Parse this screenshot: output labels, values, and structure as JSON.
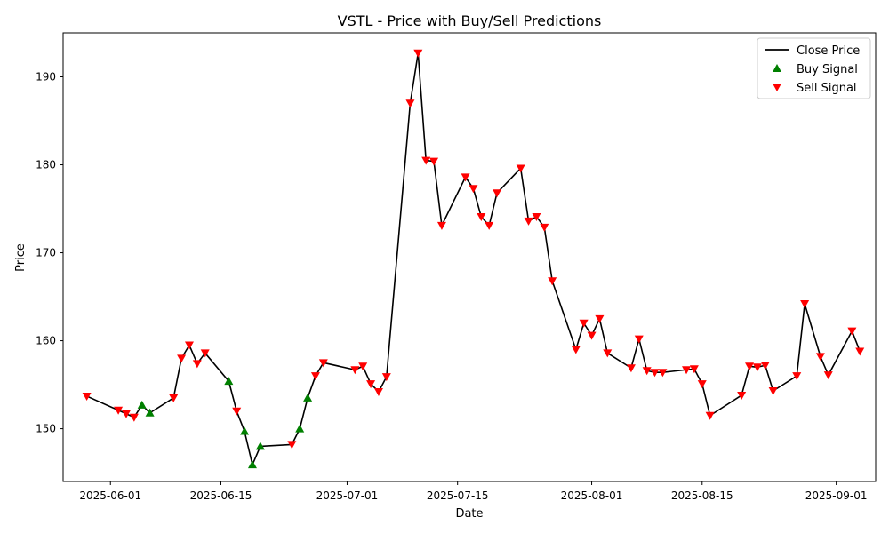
{
  "chart_data": {
    "type": "line",
    "title": "VSTL - Price with Buy/Sell Predictions",
    "xlabel": "Date",
    "ylabel": "Price",
    "xlim": [
      "2025-05-26",
      "2025-09-06"
    ],
    "ylim": [
      144,
      195
    ],
    "x_ticks": [
      "2025-06-01",
      "2025-06-15",
      "2025-07-01",
      "2025-07-15",
      "2025-08-01",
      "2025-08-15",
      "2025-09-01"
    ],
    "y_ticks": [
      150,
      160,
      170,
      180,
      190
    ],
    "legend": {
      "position": "top-right",
      "entries": [
        {
          "label": "Close Price",
          "kind": "line",
          "color": "#000000"
        },
        {
          "label": "Buy Signal",
          "kind": "triangle-up",
          "color": "#008000"
        },
        {
          "label": "Sell Signal",
          "kind": "triangle-down",
          "color": "#ff0000"
        }
      ]
    },
    "series": [
      {
        "name": "Close Price",
        "color": "#000000",
        "points": [
          [
            "2025-05-29",
            153.7
          ],
          [
            "2025-06-02",
            152.1
          ],
          [
            "2025-06-03",
            151.7
          ],
          [
            "2025-06-04",
            151.3
          ],
          [
            "2025-06-05",
            152.7
          ],
          [
            "2025-06-06",
            151.8
          ],
          [
            "2025-06-09",
            153.5
          ],
          [
            "2025-06-10",
            158.0
          ],
          [
            "2025-06-11",
            159.5
          ],
          [
            "2025-06-12",
            157.4
          ],
          [
            "2025-06-13",
            158.6
          ],
          [
            "2025-06-16",
            155.4
          ],
          [
            "2025-06-17",
            152.0
          ],
          [
            "2025-06-18",
            149.7
          ],
          [
            "2025-06-19",
            145.9
          ],
          [
            "2025-06-20",
            148.0
          ],
          [
            "2025-06-24",
            148.2
          ],
          [
            "2025-06-25",
            150.0
          ],
          [
            "2025-06-26",
            153.5
          ],
          [
            "2025-06-27",
            156.0
          ],
          [
            "2025-06-28",
            157.5
          ],
          [
            "2025-07-02",
            156.7
          ],
          [
            "2025-07-03",
            157.1
          ],
          [
            "2025-07-04",
            155.1
          ],
          [
            "2025-07-05",
            154.2
          ],
          [
            "2025-07-06",
            155.9
          ],
          [
            "2025-07-09",
            187.0
          ],
          [
            "2025-07-10",
            192.7
          ],
          [
            "2025-07-11",
            180.5
          ],
          [
            "2025-07-12",
            180.4
          ],
          [
            "2025-07-13",
            173.1
          ],
          [
            "2025-07-16",
            178.6
          ],
          [
            "2025-07-17",
            177.3
          ],
          [
            "2025-07-18",
            174.1
          ],
          [
            "2025-07-19",
            173.1
          ],
          [
            "2025-07-20",
            176.8
          ],
          [
            "2025-07-23",
            179.6
          ],
          [
            "2025-07-24",
            173.6
          ],
          [
            "2025-07-25",
            174.1
          ],
          [
            "2025-07-26",
            172.9
          ],
          [
            "2025-07-27",
            166.8
          ],
          [
            "2025-07-30",
            159.0
          ],
          [
            "2025-07-31",
            162.0
          ],
          [
            "2025-08-01",
            160.6
          ],
          [
            "2025-08-02",
            162.5
          ],
          [
            "2025-08-03",
            158.6
          ],
          [
            "2025-08-06",
            156.9
          ],
          [
            "2025-08-07",
            160.2
          ],
          [
            "2025-08-08",
            156.6
          ],
          [
            "2025-08-09",
            156.4
          ],
          [
            "2025-08-10",
            156.4
          ],
          [
            "2025-08-13",
            156.7
          ],
          [
            "2025-08-14",
            156.8
          ],
          [
            "2025-08-15",
            155.1
          ],
          [
            "2025-08-16",
            151.5
          ],
          [
            "2025-08-20",
            153.8
          ],
          [
            "2025-08-21",
            157.1
          ],
          [
            "2025-08-22",
            157.0
          ],
          [
            "2025-08-23",
            157.2
          ],
          [
            "2025-08-24",
            154.3
          ],
          [
            "2025-08-27",
            156.0
          ],
          [
            "2025-08-28",
            164.2
          ],
          [
            "2025-08-30",
            158.2
          ],
          [
            "2025-08-31",
            156.1
          ],
          [
            "2025-09-03",
            161.1
          ],
          [
            "2025-09-04",
            158.8
          ]
        ]
      }
    ],
    "buy_signals": [
      [
        "2025-06-05",
        152.7
      ],
      [
        "2025-06-06",
        151.8
      ],
      [
        "2025-06-16",
        155.4
      ],
      [
        "2025-06-18",
        149.7
      ],
      [
        "2025-06-19",
        145.9
      ],
      [
        "2025-06-20",
        148.0
      ],
      [
        "2025-06-25",
        150.0
      ],
      [
        "2025-06-26",
        153.5
      ]
    ],
    "sell_signals": [
      [
        "2025-05-29",
        153.7
      ],
      [
        "2025-06-02",
        152.1
      ],
      [
        "2025-06-03",
        151.7
      ],
      [
        "2025-06-04",
        151.3
      ],
      [
        "2025-06-09",
        153.5
      ],
      [
        "2025-06-10",
        158.0
      ],
      [
        "2025-06-11",
        159.5
      ],
      [
        "2025-06-12",
        157.4
      ],
      [
        "2025-06-13",
        158.6
      ],
      [
        "2025-06-17",
        152.0
      ],
      [
        "2025-06-24",
        148.2
      ],
      [
        "2025-06-27",
        156.0
      ],
      [
        "2025-06-28",
        157.5
      ],
      [
        "2025-07-02",
        156.7
      ],
      [
        "2025-07-03",
        157.1
      ],
      [
        "2025-07-04",
        155.1
      ],
      [
        "2025-07-05",
        154.2
      ],
      [
        "2025-07-06",
        155.9
      ],
      [
        "2025-07-09",
        187.0
      ],
      [
        "2025-07-10",
        192.7
      ],
      [
        "2025-07-11",
        180.5
      ],
      [
        "2025-07-12",
        180.4
      ],
      [
        "2025-07-13",
        173.1
      ],
      [
        "2025-07-16",
        178.6
      ],
      [
        "2025-07-17",
        177.3
      ],
      [
        "2025-07-18",
        174.1
      ],
      [
        "2025-07-19",
        173.1
      ],
      [
        "2025-07-20",
        176.8
      ],
      [
        "2025-07-23",
        179.6
      ],
      [
        "2025-07-24",
        173.6
      ],
      [
        "2025-07-25",
        174.1
      ],
      [
        "2025-07-26",
        172.9
      ],
      [
        "2025-07-27",
        166.8
      ],
      [
        "2025-07-30",
        159.0
      ],
      [
        "2025-07-31",
        162.0
      ],
      [
        "2025-08-01",
        160.6
      ],
      [
        "2025-08-02",
        162.5
      ],
      [
        "2025-08-03",
        158.6
      ],
      [
        "2025-08-06",
        156.9
      ],
      [
        "2025-08-07",
        160.2
      ],
      [
        "2025-08-08",
        156.6
      ],
      [
        "2025-08-09",
        156.4
      ],
      [
        "2025-08-10",
        156.4
      ],
      [
        "2025-08-13",
        156.7
      ],
      [
        "2025-08-14",
        156.8
      ],
      [
        "2025-08-15",
        155.1
      ],
      [
        "2025-08-16",
        151.5
      ],
      [
        "2025-08-20",
        153.8
      ],
      [
        "2025-08-21",
        157.1
      ],
      [
        "2025-08-22",
        157.0
      ],
      [
        "2025-08-23",
        157.2
      ],
      [
        "2025-08-24",
        154.3
      ],
      [
        "2025-08-27",
        156.0
      ],
      [
        "2025-08-28",
        164.2
      ],
      [
        "2025-08-30",
        158.2
      ],
      [
        "2025-08-31",
        156.1
      ],
      [
        "2025-09-03",
        161.1
      ],
      [
        "2025-09-04",
        158.8
      ]
    ],
    "grid": false
  }
}
